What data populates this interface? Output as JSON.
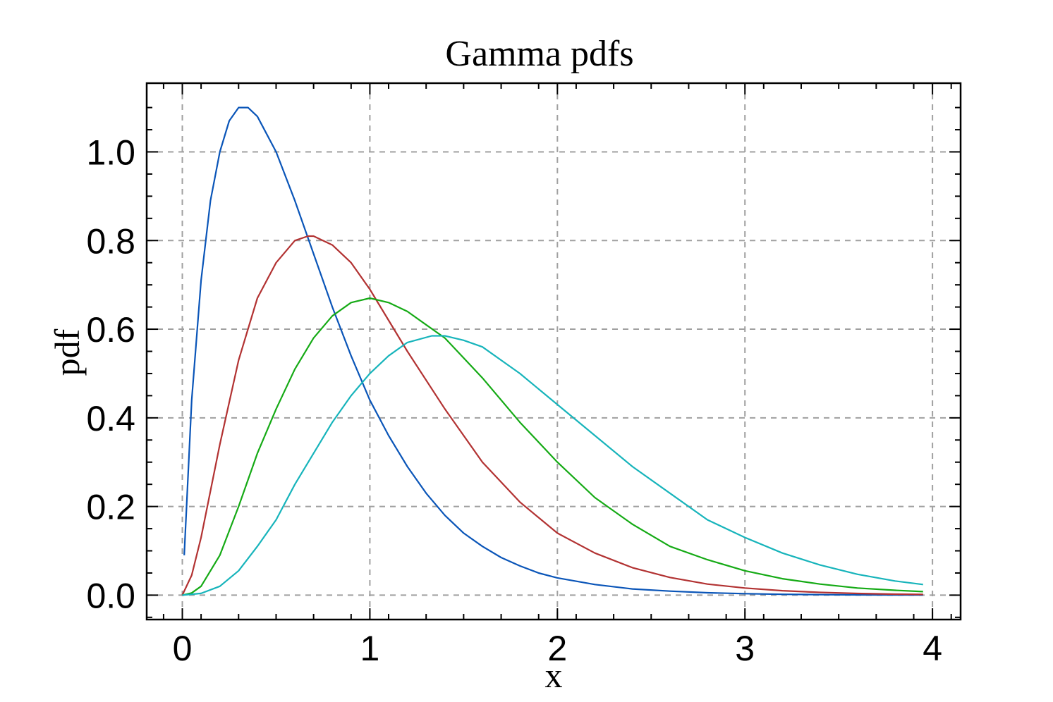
{
  "chart_data": {
    "type": "line",
    "title": "Gamma pdfs",
    "xlabel": "x",
    "ylabel": "pdf",
    "xlim": [
      -0.19,
      4.15
    ],
    "ylim": [
      -0.055,
      1.155
    ],
    "xticks": [
      0,
      1,
      2,
      3,
      4
    ],
    "xtick_labels": [
      "0",
      "1",
      "2",
      "3",
      "4"
    ],
    "yticks": [
      0.0,
      0.2,
      0.4,
      0.6,
      0.8,
      1.0
    ],
    "ytick_labels": [
      "0.0",
      "0.2",
      "0.4",
      "0.6",
      "0.8",
      "1.0"
    ],
    "grid": true,
    "legend": "none",
    "series": [
      {
        "color": "#0a55b8",
        "x": [
          0.01,
          0.05,
          0.1,
          0.15,
          0.2,
          0.25,
          0.3,
          0.35,
          0.4,
          0.45,
          0.5,
          0.6,
          0.7,
          0.8,
          0.9,
          1.0,
          1.1,
          1.2,
          1.3,
          1.4,
          1.5,
          1.6,
          1.7,
          1.8,
          1.9,
          2.0,
          2.2,
          2.4,
          2.6,
          2.8,
          3.0,
          3.2,
          3.4,
          3.6,
          3.8,
          3.95
        ],
        "y": [
          0.09,
          0.44,
          0.71,
          0.89,
          1.0,
          1.07,
          1.1,
          1.1,
          1.08,
          1.04,
          1.0,
          0.89,
          0.77,
          0.65,
          0.54,
          0.44,
          0.36,
          0.29,
          0.23,
          0.18,
          0.14,
          0.11,
          0.085,
          0.066,
          0.05,
          0.039,
          0.024,
          0.014,
          0.009,
          0.0055,
          0.0033,
          0.002,
          0.0012,
          0.0007,
          0.0004,
          0.0003
        ]
      },
      {
        "color": "#b23232",
        "x": [
          0.0,
          0.05,
          0.1,
          0.2,
          0.3,
          0.4,
          0.5,
          0.6,
          0.67,
          0.7,
          0.8,
          0.9,
          1.0,
          1.2,
          1.4,
          1.6,
          1.8,
          2.0,
          2.2,
          2.4,
          2.6,
          2.8,
          3.0,
          3.2,
          3.4,
          3.6,
          3.8,
          3.95
        ],
        "y": [
          0.0,
          0.045,
          0.13,
          0.34,
          0.53,
          0.67,
          0.75,
          0.8,
          0.81,
          0.81,
          0.79,
          0.75,
          0.69,
          0.55,
          0.42,
          0.3,
          0.21,
          0.14,
          0.095,
          0.062,
          0.04,
          0.025,
          0.016,
          0.01,
          0.0062,
          0.0038,
          0.0023,
          0.0016
        ]
      },
      {
        "color": "#15aa15",
        "x": [
          0.0,
          0.05,
          0.1,
          0.2,
          0.3,
          0.4,
          0.5,
          0.6,
          0.7,
          0.8,
          0.9,
          1.0,
          1.1,
          1.2,
          1.3,
          1.4,
          1.6,
          1.8,
          2.0,
          2.2,
          2.4,
          2.6,
          2.8,
          3.0,
          3.2,
          3.4,
          3.6,
          3.8,
          3.95
        ],
        "y": [
          0.0,
          0.005,
          0.02,
          0.09,
          0.2,
          0.32,
          0.42,
          0.51,
          0.58,
          0.63,
          0.66,
          0.67,
          0.66,
          0.64,
          0.61,
          0.58,
          0.49,
          0.39,
          0.3,
          0.22,
          0.16,
          0.11,
          0.08,
          0.055,
          0.037,
          0.025,
          0.016,
          0.011,
          0.008
        ]
      },
      {
        "color": "#17b4bb",
        "x": [
          0.0,
          0.1,
          0.2,
          0.3,
          0.4,
          0.5,
          0.6,
          0.7,
          0.8,
          0.9,
          1.0,
          1.1,
          1.2,
          1.33,
          1.4,
          1.5,
          1.6,
          1.8,
          2.0,
          2.2,
          2.4,
          2.6,
          2.8,
          3.0,
          3.2,
          3.4,
          3.6,
          3.8,
          3.95
        ],
        "y": [
          0.0,
          0.004,
          0.02,
          0.055,
          0.11,
          0.17,
          0.25,
          0.32,
          0.39,
          0.45,
          0.5,
          0.54,
          0.57,
          0.585,
          0.585,
          0.575,
          0.56,
          0.5,
          0.43,
          0.36,
          0.29,
          0.23,
          0.17,
          0.13,
          0.095,
          0.068,
          0.047,
          0.032,
          0.024
        ]
      }
    ]
  }
}
